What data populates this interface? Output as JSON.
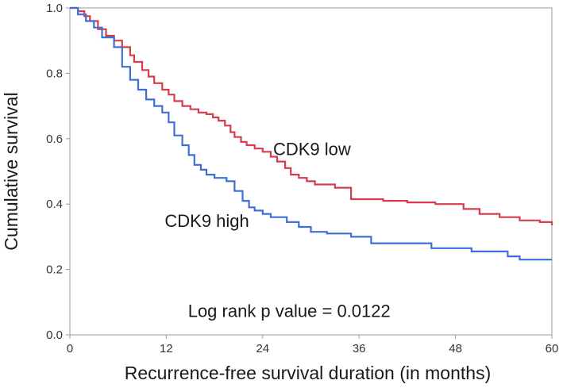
{
  "chart_data": {
    "type": "line",
    "title": "",
    "xlabel": "Recurrence-free survival duration (in months)",
    "ylabel": "Cumulative survival",
    "xlim": [
      0,
      60
    ],
    "ylim": [
      0,
      1.0
    ],
    "xticks": [
      0,
      12,
      24,
      36,
      48,
      60
    ],
    "yticks": [
      "0.0",
      "0.2",
      "0.4",
      "0.6",
      "0.8",
      "1.0"
    ],
    "grid": false,
    "series": [
      {
        "name": "CDK9 low",
        "color": "#d63c4c",
        "step": true,
        "x": [
          0,
          1,
          1.8,
          2.5,
          3.5,
          4.5,
          5.5,
          6.5,
          7.5,
          8,
          9,
          9.8,
          10.5,
          11.5,
          12.3,
          13,
          14,
          15,
          16,
          17,
          17.8,
          18.5,
          19.3,
          20,
          20.5,
          21.3,
          22,
          23,
          24,
          25,
          25.8,
          26.8,
          27.5,
          28.5,
          29.5,
          30.5,
          33,
          35,
          39,
          42,
          45.5,
          49,
          51,
          53.5,
          56,
          58.5,
          60
        ],
        "y": [
          1.0,
          0.99,
          0.975,
          0.96,
          0.935,
          0.915,
          0.9,
          0.88,
          0.855,
          0.835,
          0.81,
          0.79,
          0.77,
          0.75,
          0.735,
          0.715,
          0.7,
          0.69,
          0.68,
          0.675,
          0.665,
          0.655,
          0.64,
          0.62,
          0.605,
          0.59,
          0.58,
          0.57,
          0.56,
          0.545,
          0.53,
          0.51,
          0.49,
          0.48,
          0.47,
          0.46,
          0.45,
          0.415,
          0.41,
          0.405,
          0.4,
          0.385,
          0.37,
          0.36,
          0.35,
          0.345,
          0.335
        ]
      },
      {
        "name": "CDK9 high",
        "color": "#3f6fd6",
        "step": true,
        "x": [
          0,
          1,
          2,
          3,
          4,
          5.5,
          6.5,
          7.5,
          8.5,
          9.5,
          10.5,
          11.5,
          12.3,
          13,
          14,
          14.8,
          15.5,
          16.3,
          17,
          18,
          19.5,
          20.5,
          21.5,
          22.3,
          23,
          24,
          25,
          27,
          28.5,
          30,
          32,
          35,
          37.5,
          45,
          50,
          54.5,
          56
        ],
        "y": [
          1.0,
          0.98,
          0.96,
          0.94,
          0.91,
          0.88,
          0.82,
          0.78,
          0.75,
          0.72,
          0.7,
          0.68,
          0.65,
          0.61,
          0.58,
          0.55,
          0.52,
          0.505,
          0.49,
          0.48,
          0.47,
          0.44,
          0.41,
          0.39,
          0.38,
          0.37,
          0.36,
          0.345,
          0.33,
          0.315,
          0.31,
          0.3,
          0.28,
          0.265,
          0.255,
          0.24,
          0.23
        ]
      }
    ],
    "annotations": [
      {
        "name": "label-cdk9-low",
        "text": "CDK9 low",
        "x": 25.3,
        "y": 0.55
      },
      {
        "name": "label-cdk9-high",
        "text": "CDK9 high",
        "x": 11.8,
        "y": 0.33
      },
      {
        "name": "p-value-text",
        "text": "Log rank p value = 0.0122",
        "x": 14.7,
        "y": 0.055
      }
    ]
  }
}
